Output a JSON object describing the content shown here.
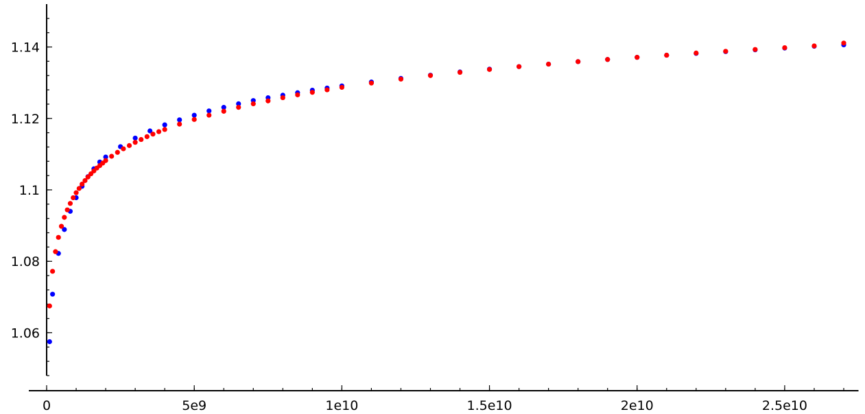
{
  "chart_data": {
    "type": "scatter",
    "title": "",
    "xlabel": "",
    "ylabel": "",
    "xlim": [
      0,
      27500000000
    ],
    "ylim": [
      1.048,
      1.152
    ],
    "x_ticks": [
      {
        "value": 0,
        "label": "0"
      },
      {
        "value": 5000000000,
        "label": "5e9"
      },
      {
        "value": 10000000000,
        "label": "1e10"
      },
      {
        "value": 15000000000,
        "label": "1.5e10"
      },
      {
        "value": 20000000000,
        "label": "2e10"
      },
      {
        "value": 25000000000,
        "label": "2.5e10"
      }
    ],
    "x_minor_tick_step": 1000000000,
    "y_ticks": [
      {
        "value": 1.06,
        "label": "1.06"
      },
      {
        "value": 1.08,
        "label": "1.08"
      },
      {
        "value": 1.1,
        "label": "1.1"
      },
      {
        "value": 1.12,
        "label": "1.12"
      },
      {
        "value": 1.14,
        "label": "1.14"
      }
    ],
    "y_minor_tick_step": 0.004,
    "grid": false,
    "legend": "none",
    "series": [
      {
        "color": "#0000ff",
        "x": [
          100000000,
          200000000,
          400000000,
          600000000,
          800000000,
          1000000000,
          1200000000,
          1400000000,
          1600000000,
          1800000000,
          2000000000,
          2500000000,
          3000000000,
          3500000000,
          4000000000,
          4500000000,
          5000000000,
          5500000000,
          6000000000,
          6500000000,
          7000000000,
          7500000000,
          8000000000,
          8500000000,
          9000000000,
          9500000000,
          10000000000,
          11000000000,
          12000000000,
          13000000000,
          14000000000,
          15000000000,
          16000000000,
          17000000000,
          18000000000,
          19000000000,
          20000000000,
          21000000000,
          22000000000,
          23000000000,
          24000000000,
          25000000000,
          26000000000,
          27000000000
        ],
        "y": [
          1.0575,
          1.0708,
          1.0822,
          1.0889,
          1.094,
          1.0978,
          1.101,
          1.1037,
          1.1059,
          1.1078,
          1.1092,
          1.1121,
          1.1145,
          1.1165,
          1.1182,
          1.1196,
          1.1209,
          1.1221,
          1.1231,
          1.1241,
          1.125,
          1.1258,
          1.1265,
          1.1272,
          1.1279,
          1.1285,
          1.1291,
          1.1302,
          1.1312,
          1.1321,
          1.133,
          1.1338,
          1.1345,
          1.1352,
          1.1359,
          1.1365,
          1.1371,
          1.1377,
          1.1382,
          1.1387,
          1.1392,
          1.1397,
          1.1402,
          1.1406
        ]
      },
      {
        "color": "#ff0000",
        "x": [
          100000000,
          200000000,
          300000000,
          400000000,
          500000000,
          600000000,
          700000000,
          800000000,
          900000000,
          1000000000,
          1100000000,
          1200000000,
          1300000000,
          1400000000,
          1500000000,
          1600000000,
          1700000000,
          1800000000,
          1900000000,
          2000000000,
          2200000000,
          2400000000,
          2600000000,
          2800000000,
          3000000000,
          3200000000,
          3400000000,
          3600000000,
          3800000000,
          4000000000,
          4500000000,
          5000000000,
          5500000000,
          6000000000,
          6500000000,
          7000000000,
          7500000000,
          8000000000,
          8500000000,
          9000000000,
          9500000000,
          10000000000,
          11000000000,
          12000000000,
          13000000000,
          14000000000,
          15000000000,
          16000000000,
          17000000000,
          18000000000,
          19000000000,
          20000000000,
          21000000000,
          22000000000,
          23000000000,
          24000000000,
          25000000000,
          26000000000,
          27000000000
        ],
        "y": [
          1.0675,
          1.0772,
          1.0827,
          1.0867,
          1.0898,
          1.0923,
          1.0944,
          1.0962,
          1.0978,
          1.0992,
          1.1004,
          1.1016,
          1.1026,
          1.1036,
          1.1045,
          1.1053,
          1.1061,
          1.1068,
          1.1075,
          1.1082,
          1.1094,
          1.1105,
          1.1115,
          1.1124,
          1.1133,
          1.1141,
          1.1149,
          1.1156,
          1.1163,
          1.1169,
          1.1184,
          1.1197,
          1.1209,
          1.122,
          1.1231,
          1.1241,
          1.1249,
          1.1258,
          1.1266,
          1.1273,
          1.128,
          1.1287,
          1.1299,
          1.131,
          1.132,
          1.1329,
          1.1337,
          1.1345,
          1.1352,
          1.1359,
          1.1365,
          1.1371,
          1.1377,
          1.1383,
          1.1388,
          1.1393,
          1.1398,
          1.1403,
          1.1411
        ]
      }
    ]
  }
}
